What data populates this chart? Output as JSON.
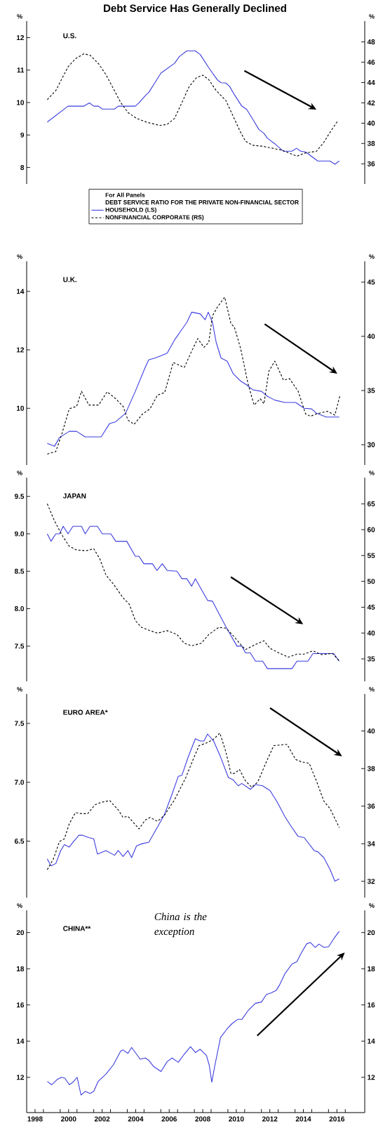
{
  "chart_data": [
    {
      "type": "line",
      "title": "Debt Service Has Generally Declined",
      "subtitle": "U.S.",
      "ylabel": "%",
      "y2label": "%",
      "legend": "bottom",
      "legend_title": "DEBT SERVICE RATIO FOR THE PRIVATE NON-FINANCIAL SECTOR",
      "annotations": [
        "For All Panels"
      ],
      "tick_labels": "y",
      "xlim": [
        1998,
        2018.16
      ],
      "ylim": [
        7.49,
        12.51
      ],
      "yticks": [
        8,
        9,
        10,
        11,
        12
      ],
      "y2lim": [
        34.01,
        50.05
      ],
      "y2ticks": [
        36,
        38,
        40,
        42,
        44,
        46,
        48
      ],
      "series": [
        {
          "name": "HOUSEHOLD (LS)",
          "color": "#3d3de0",
          "line_style": "solid",
          "x": [
            1999.23,
            2000.47,
            2001.42,
            2001.74,
            2002.0,
            2002.29,
            2002.51,
            2003.24,
            2003.46,
            2004.48,
            2004.7,
            2005.07,
            2005.28,
            2005.65,
            2006.01,
            2006.82,
            2007.11,
            2007.55,
            2008.06,
            2008.35,
            2008.86,
            2009.37,
            2009.59,
            2009.88,
            2010.1,
            2010.39,
            2010.83,
            2011.12,
            2011.49,
            2011.85,
            2012.15,
            2012.36,
            2012.8,
            2013.31,
            2013.82,
            2014.09,
            2014.34,
            2014.63,
            2015.36,
            2016.09,
            2016.38,
            2016.64
          ],
          "values": [
            9.4,
            9.89,
            9.89,
            9.99,
            9.89,
            9.89,
            9.8,
            9.8,
            9.89,
            9.89,
            9.99,
            10.21,
            10.31,
            10.61,
            10.91,
            11.21,
            11.42,
            11.59,
            11.59,
            11.48,
            11.07,
            10.7,
            10.61,
            10.6,
            10.5,
            10.24,
            9.89,
            9.79,
            9.48,
            9.17,
            9.05,
            8.9,
            8.73,
            8.5,
            8.5,
            8.59,
            8.5,
            8.48,
            8.2,
            8.2,
            8.1,
            8.2
          ]
        },
        {
          "name": "NONFINANCIAL CORPORATE (RS)",
          "color": "#000000",
          "line_style": "dashed",
          "axis": "y2",
          "x": [
            1999.23,
            1999.74,
            2000.1,
            2000.47,
            2000.91,
            2001.42,
            2001.78,
            2002.29,
            2002.73,
            2003.17,
            2003.61,
            2004.04,
            2004.55,
            2005.21,
            2005.94,
            2006.38,
            2006.82,
            2007.26,
            2007.69,
            2008.13,
            2008.5,
            2008.86,
            2009.3,
            2009.88,
            2010.32,
            2010.76,
            2011.05,
            2011.49,
            2012.07,
            2012.66,
            2013.24,
            2013.68,
            2014.12,
            2014.55,
            2015.28,
            2015.72,
            2016.16,
            2016.53
          ],
          "values": [
            42.32,
            43.21,
            44.38,
            45.55,
            46.34,
            46.83,
            46.69,
            45.85,
            44.77,
            43.4,
            42.03,
            41.05,
            40.47,
            40.07,
            39.78,
            39.88,
            40.47,
            42.03,
            43.6,
            44.48,
            44.73,
            44.28,
            43.21,
            42.23,
            40.66,
            39.1,
            38.22,
            37.82,
            37.73,
            37.53,
            37.33,
            37.04,
            36.75,
            37.04,
            37.24,
            38.12,
            39.29,
            40.17
          ]
        }
      ]
    },
    {
      "type": "line",
      "subtitle": "U.K.",
      "ylabel": "%",
      "y2label": "%",
      "tick_labels": "y",
      "xlim": [
        1998,
        2018.16
      ],
      "ylim": [
        8.06,
        15.03
      ],
      "yticks": [
        10,
        12,
        14
      ],
      "y2lim": [
        28.13,
        46.92
      ],
      "y2ticks": [
        30,
        35,
        40,
        45
      ],
      "series": [
        {
          "color": "#3d3de0",
          "line_style": "solid",
          "x": [
            1999.23,
            1999.66,
            1999.96,
            2000.54,
            2000.98,
            2001.49,
            2002.44,
            2002.95,
            2003.31,
            2003.9,
            2004.48,
            2005.07,
            2005.28,
            2005.65,
            2006.01,
            2006.38,
            2006.82,
            2007.55,
            2007.84,
            2008.35,
            2008.64,
            2008.83,
            2009.08,
            2009.3,
            2009.59,
            2009.96,
            2010.32,
            2010.76,
            2011.12,
            2011.49,
            2012.0,
            2012.36,
            2012.8,
            2013.39,
            2014.04,
            2014.55,
            2014.99,
            2015.28,
            2015.87,
            2016.64
          ],
          "values": [
            8.8,
            8.7,
            9.0,
            9.21,
            9.21,
            9.02,
            9.02,
            9.48,
            9.54,
            9.83,
            10.58,
            11.4,
            11.66,
            11.72,
            11.8,
            11.89,
            12.34,
            12.94,
            13.29,
            13.23,
            13.03,
            13.29,
            12.94,
            12.26,
            11.72,
            11.61,
            11.18,
            10.93,
            10.8,
            10.63,
            10.58,
            10.41,
            10.28,
            10.2,
            10.2,
            10.0,
            9.98,
            9.83,
            9.7,
            9.7
          ]
        },
        {
          "color": "#000000",
          "line_style": "dashed",
          "axis": "y2",
          "x": [
            1999.23,
            1999.74,
            2000.1,
            2000.54,
            2000.98,
            2001.27,
            2001.71,
            2002.29,
            2002.8,
            2003.31,
            2003.75,
            2004.04,
            2004.41,
            2004.92,
            2005.36,
            2005.8,
            2006.23,
            2006.74,
            2007.4,
            2007.84,
            2008.2,
            2008.57,
            2008.86,
            2009.08,
            2009.37,
            2009.81,
            2010.18,
            2010.39,
            2010.76,
            2011.2,
            2011.56,
            2011.93,
            2012.15,
            2012.44,
            2012.8,
            2013.31,
            2013.68,
            2014.19,
            2014.63,
            2014.92,
            2015.28,
            2015.94,
            2016.38,
            2016.67
          ],
          "values": [
            29.14,
            29.38,
            31.0,
            33.31,
            33.54,
            34.93,
            33.66,
            33.66,
            34.88,
            34.24,
            33.54,
            32.27,
            31.88,
            32.85,
            33.31,
            34.58,
            34.81,
            37.59,
            37.13,
            38.63,
            39.79,
            38.98,
            39.44,
            41.88,
            42.69,
            43.61,
            41.18,
            40.83,
            38.87,
            35.63,
            33.66,
            34.24,
            33.77,
            36.78,
            37.71,
            35.97,
            36.09,
            34.93,
            32.85,
            32.62,
            32.85,
            33.08,
            32.73,
            34.47
          ]
        }
      ]
    },
    {
      "type": "line",
      "subtitle": "JAPAN",
      "ylabel": "%",
      "y2label": "%",
      "tick_labels": "y",
      "xlim": [
        1998,
        2018.16
      ],
      "ylim": [
        7.03,
        9.75
      ],
      "yticks": [
        {
          "value": 7.5,
          "label": "7.5"
        },
        {
          "value": 8,
          "label": "8.0"
        },
        {
          "value": 8.5,
          "label": "8.5"
        },
        {
          "value": 9,
          "label": "9.0"
        },
        {
          "value": 9.5,
          "label": "9.5"
        }
      ],
      "y2lim": [
        30.66,
        70.07
      ],
      "y2ticks": [
        35,
        40,
        45,
        50,
        55,
        60,
        65
      ],
      "series": [
        {
          "color": "#3d3de0",
          "line_style": "solid",
          "x": [
            1999.23,
            1999.45,
            1999.74,
            1999.96,
            2000.18,
            2000.47,
            2000.76,
            2001.27,
            2001.49,
            2001.78,
            2002.22,
            2002.51,
            2003.02,
            2003.31,
            2003.97,
            2004.48,
            2004.7,
            2004.99,
            2005.5,
            2005.77,
            2006.09,
            2006.38,
            2006.96,
            2007.26,
            2007.55,
            2007.84,
            2008.06,
            2008.79,
            2009.08,
            2009.88,
            2010.54,
            2010.83,
            2011.05,
            2011.34,
            2011.64,
            2012.07,
            2012.36,
            2013.82,
            2014.12,
            2014.77,
            2015.07,
            2016.31,
            2016.64
          ],
          "values": [
            9.0,
            8.9,
            9.0,
            9.0,
            9.1,
            9.0,
            9.1,
            9.1,
            9.0,
            9.1,
            9.1,
            9.0,
            9.0,
            8.9,
            8.9,
            8.7,
            8.7,
            8.6,
            8.6,
            8.51,
            8.6,
            8.51,
            8.5,
            8.4,
            8.4,
            8.3,
            8.4,
            8.11,
            8.1,
            7.76,
            7.5,
            7.5,
            7.41,
            7.41,
            7.3,
            7.3,
            7.2,
            7.2,
            7.3,
            7.3,
            7.4,
            7.4,
            7.3
          ]
        },
        {
          "color": "#000000",
          "line_style": "dashed",
          "axis": "y2",
          "x": [
            1999.23,
            1999.66,
            2000.1,
            2000.54,
            2000.98,
            2001.56,
            2002.0,
            2002.36,
            2002.73,
            2003.17,
            2003.75,
            2004.12,
            2004.48,
            2004.85,
            2005.36,
            2005.8,
            2006.38,
            2006.96,
            2007.4,
            2007.84,
            2008.42,
            2008.86,
            2009.45,
            2009.88,
            2010.32,
            2010.76,
            2011.05,
            2011.64,
            2012.15,
            2012.51,
            2013.09,
            2013.61,
            2014.12,
            2014.55,
            2015.07,
            2015.58,
            2016.23,
            2016.64
          ],
          "values": [
            65.0,
            61.68,
            59.0,
            56.8,
            56.07,
            55.93,
            56.32,
            54.37,
            51.2,
            49.49,
            46.8,
            45.59,
            42.41,
            41.1,
            40.46,
            39.98,
            40.46,
            39.73,
            38.02,
            37.54,
            38.02,
            39.73,
            41.1,
            40.95,
            39.49,
            37.78,
            36.8,
            37.78,
            38.51,
            37.05,
            36.07,
            35.34,
            35.93,
            35.93,
            36.56,
            35.83,
            36.07,
            34.61
          ]
        }
      ]
    },
    {
      "type": "line",
      "subtitle": "EURO AREA*",
      "ylabel": "%",
      "y2label": "%",
      "tick_labels": "y",
      "xlim": [
        1998,
        2018.16
      ],
      "ylim": [
        6.02,
        7.75
      ],
      "yticks": [
        6.5,
        {
          "value": 7,
          "label": "7.0"
        },
        7.5
      ],
      "y2lim": [
        31.13,
        41.97
      ],
      "y2ticks": [
        32,
        34,
        36,
        38,
        40
      ],
      "series": [
        {
          "color": "#3d3de0",
          "line_style": "solid",
          "x": [
            1999.23,
            1999.45,
            1999.74,
            2000.03,
            2000.25,
            2000.54,
            2000.76,
            2001.12,
            2001.34,
            2001.71,
            2002.0,
            2002.22,
            2002.73,
            2003.24,
            2003.46,
            2003.75,
            2004.04,
            2004.26,
            2004.55,
            2004.92,
            2005.28,
            2005.8,
            2006.23,
            2006.67,
            2007.04,
            2007.26,
            2007.62,
            2008.06,
            2008.35,
            2008.57,
            2008.79,
            2009.15,
            2009.52,
            2010.03,
            2010.32,
            2010.61,
            2010.83,
            2011.34,
            2011.64,
            2012.07,
            2012.51,
            2012.95,
            2013.39,
            2013.75,
            2014.19,
            2014.55,
            2015.14,
            2015.36,
            2015.72,
            2016.09,
            2016.38,
            2016.64
          ],
          "values": [
            6.35,
            6.29,
            6.31,
            6.42,
            6.47,
            6.45,
            6.49,
            6.55,
            6.55,
            6.53,
            6.52,
            6.39,
            6.42,
            6.38,
            6.42,
            6.37,
            6.42,
            6.36,
            6.46,
            6.48,
            6.49,
            6.62,
            6.73,
            6.9,
            7.05,
            7.06,
            7.21,
            7.37,
            7.35,
            7.35,
            7.41,
            7.35,
            7.23,
            7.04,
            7.02,
            6.97,
            6.99,
            6.94,
            6.98,
            6.97,
            6.93,
            6.83,
            6.71,
            6.63,
            6.54,
            6.53,
            6.42,
            6.41,
            6.36,
            6.26,
            6.16,
            6.18
          ]
        },
        {
          "color": "#000000",
          "line_style": "dashed",
          "axis": "y2",
          "x": [
            1999.23,
            1999.59,
            1999.96,
            2000.25,
            2000.54,
            2000.91,
            2001.27,
            2001.64,
            2002.07,
            2002.44,
            2002.95,
            2003.46,
            2003.75,
            2004.04,
            2004.7,
            2005.07,
            2005.36,
            2005.8,
            2006.23,
            2006.82,
            2007.47,
            2007.99,
            2008.28,
            2008.72,
            2009.15,
            2009.52,
            2009.88,
            2010.18,
            2010.39,
            2010.69,
            2011.05,
            2011.42,
            2011.78,
            2012.29,
            2012.73,
            2013.53,
            2014.04,
            2014.41,
            2014.85,
            2015.28,
            2015.72,
            2016.09,
            2016.64
          ],
          "values": [
            32.62,
            33.18,
            34.12,
            34.26,
            35.06,
            35.66,
            35.6,
            35.6,
            36.07,
            36.2,
            36.3,
            35.8,
            35.4,
            35.46,
            34.79,
            35.26,
            35.4,
            35.19,
            35.53,
            36.34,
            37.48,
            38.62,
            39.22,
            39.36,
            39.56,
            39.89,
            38.89,
            37.74,
            37.74,
            37.95,
            37.34,
            37.01,
            37.28,
            38.35,
            39.22,
            39.29,
            38.48,
            38.35,
            38.28,
            37.34,
            36.27,
            35.87,
            34.86
          ]
        }
      ]
    },
    {
      "type": "line",
      "subtitle": "CHINA**",
      "ylabel": "%",
      "y2label": "%",
      "annotations": [
        "China is the exception"
      ],
      "xlim": [
        1998,
        2018.16
      ],
      "xticks": [
        {
          "value": 1999,
          "label": null
        },
        {
          "value": 2000,
          "label": null
        },
        {
          "value": 2001,
          "label": null
        },
        {
          "value": 2002,
          "label": null
        },
        {
          "value": 2003,
          "label": null
        },
        {
          "value": 2004,
          "label": null
        },
        {
          "value": 2005,
          "label": null
        },
        {
          "value": 2006,
          "label": null
        },
        {
          "value": 2007,
          "label": null
        },
        {
          "value": 2008,
          "label": null
        },
        {
          "value": 2009,
          "label": null
        },
        {
          "value": 2010,
          "label": null
        },
        {
          "value": 2011,
          "label": null
        },
        {
          "value": 2012,
          "label": null
        },
        {
          "value": 2013,
          "label": null
        },
        {
          "value": 2014,
          "label": null
        },
        {
          "value": 2015,
          "label": null
        },
        {
          "value": 2016,
          "label": null
        },
        {
          "value": 2017,
          "label": null
        },
        {
          "value": 1998.5,
          "label": "1998"
        },
        {
          "value": 2000.5,
          "label": "2000"
        },
        {
          "value": 2002.5,
          "label": "2002"
        },
        {
          "value": 2004.5,
          "label": "2004"
        },
        {
          "value": 2006.5,
          "label": "2006"
        },
        {
          "value": 2008.5,
          "label": "2008"
        },
        {
          "value": 2010.5,
          "label": "2010"
        },
        {
          "value": 2012.5,
          "label": "2012"
        },
        {
          "value": 2014.5,
          "label": "2014"
        },
        {
          "value": 2016.5,
          "label": "2016"
        }
      ],
      "ylim": [
        10.05,
        21.23
      ],
      "yticks": [
        12,
        14,
        16,
        18,
        20
      ],
      "y2lim": [
        10.05,
        21.23
      ],
      "y2ticks": [
        12,
        14,
        16,
        18,
        20
      ],
      "series": [
        {
          "color": "#3d3de0",
          "line_style": "solid",
          "x": [
            1999.23,
            1999.49,
            1999.81,
            2000.07,
            2000.28,
            2000.54,
            2000.76,
            2001.01,
            2001.24,
            2001.49,
            2001.78,
            2002.0,
            2002.26,
            2002.73,
            2003.17,
            2003.61,
            2003.75,
            2004.04,
            2004.26,
            2004.77,
            2005.07,
            2005.28,
            2005.58,
            2006.01,
            2006.38,
            2006.67,
            2007.04,
            2007.4,
            2007.77,
            2008.06,
            2008.35,
            2008.72,
            2008.89,
            2009.04,
            2009.23,
            2009.56,
            2009.96,
            2010.25,
            2010.58,
            2010.83,
            2011.2,
            2011.64,
            2012.0,
            2012.29,
            2012.58,
            2012.88,
            2013.09,
            2013.39,
            2013.82,
            2014.12,
            2014.34,
            2014.7,
            2014.92,
            2015.21,
            2015.43,
            2015.72,
            2016.01,
            2016.31,
            2016.64
          ],
          "values": [
            11.77,
            11.59,
            11.87,
            12.0,
            11.95,
            11.59,
            11.73,
            12.0,
            11.02,
            11.22,
            11.11,
            11.22,
            11.77,
            12.18,
            12.69,
            13.46,
            13.51,
            13.32,
            13.65,
            13.0,
            13.07,
            12.94,
            12.59,
            12.32,
            12.87,
            13.07,
            12.83,
            13.28,
            13.69,
            13.37,
            13.55,
            13.21,
            12.66,
            11.73,
            12.69,
            14.2,
            14.69,
            14.97,
            15.2,
            15.2,
            15.68,
            16.09,
            16.16,
            16.57,
            16.67,
            16.8,
            17.12,
            17.71,
            18.26,
            18.4,
            18.81,
            19.38,
            19.45,
            19.18,
            19.36,
            19.18,
            19.22,
            19.66,
            20.07
          ]
        }
      ]
    }
  ]
}
